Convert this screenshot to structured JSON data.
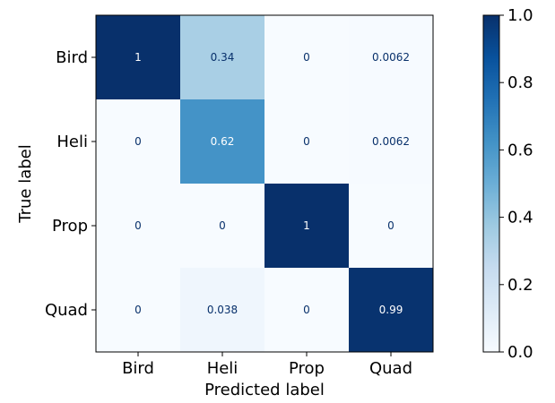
{
  "chart_data": {
    "type": "heatmap",
    "title": "",
    "xlabel": "Predicted label",
    "ylabel": "True label",
    "x_categories": [
      "Bird",
      "Heli",
      "Prop",
      "Quad"
    ],
    "y_categories": [
      "Bird",
      "Heli",
      "Prop",
      "Quad"
    ],
    "values": [
      [
        1,
        0.34,
        0,
        0.0062
      ],
      [
        0,
        0.62,
        0,
        0.0062
      ],
      [
        0,
        0,
        1,
        0
      ],
      [
        0,
        0.038,
        0,
        0.99
      ]
    ],
    "value_labels": [
      [
        "1",
        "0.34",
        "0",
        "0.0062"
      ],
      [
        "0",
        "0.62",
        "0",
        "0.0062"
      ],
      [
        "0",
        "0",
        "1",
        "0"
      ],
      [
        "0",
        "0.038",
        "0",
        "0.99"
      ]
    ],
    "colormap": "Blues",
    "vmin": 0.0,
    "vmax": 1.0,
    "colorbar": {
      "ticks": [
        0.0,
        0.2,
        0.4,
        0.6,
        0.8,
        1.0
      ],
      "tick_labels": [
        "0.0",
        "0.2",
        "0.4",
        "0.6",
        "0.8",
        "1.0"
      ]
    },
    "text_colors": {
      "on_light": "#08306b",
      "on_dark": "#ffffff"
    }
  }
}
